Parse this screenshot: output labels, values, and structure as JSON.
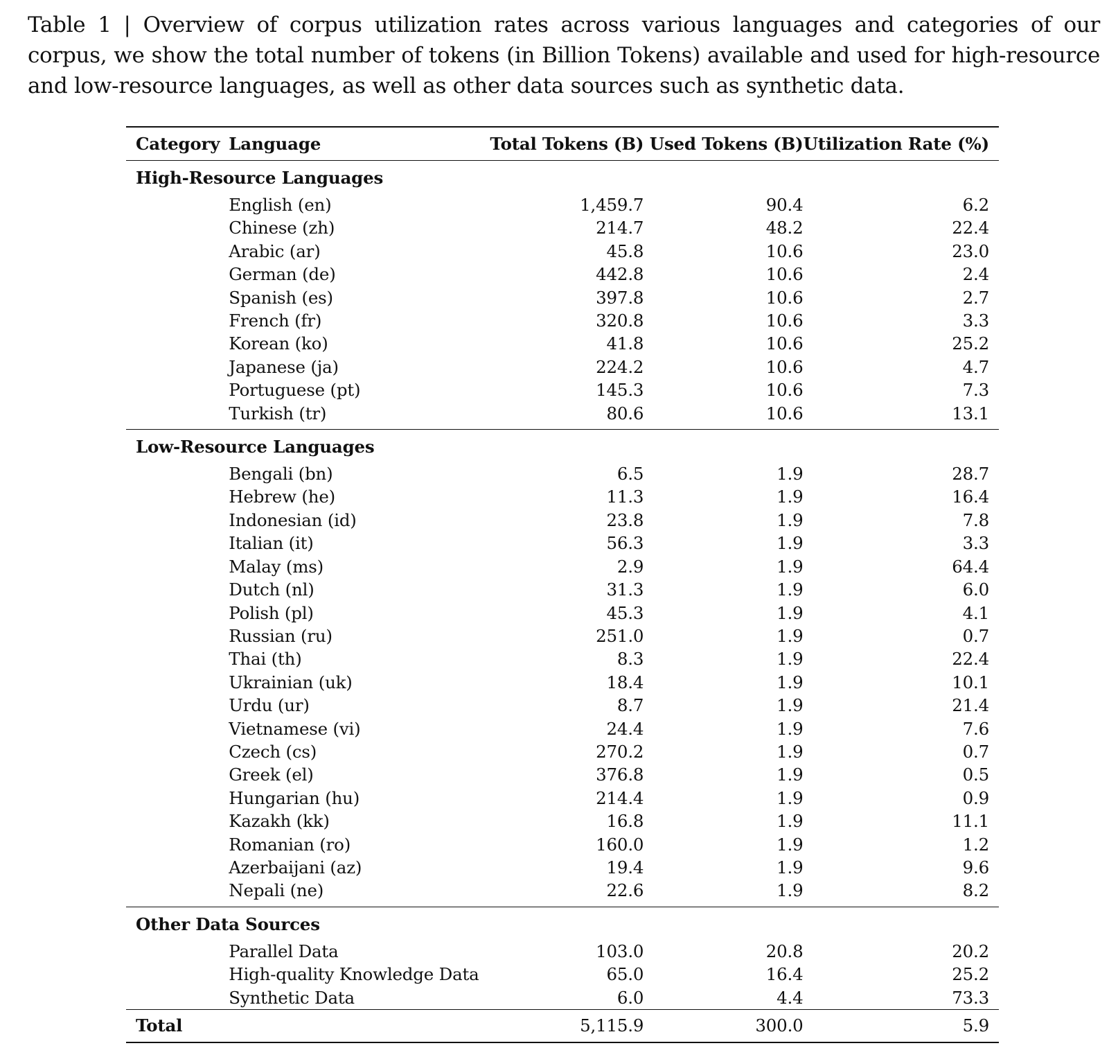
{
  "caption": "Table 1 | Overview of corpus utilization rates across various languages and categories of our corpus, we show the total number of tokens (in Billion Tokens) available and used for high-resource and low-resource languages, as well as other data sources such as synthetic data.",
  "headers": {
    "category": "Category",
    "language": "Language",
    "total": "Total Tokens (B)",
    "used": "Used Tokens (B)",
    "rate": "Utilization Rate (%)"
  },
  "sections": [
    {
      "title": "High-Resource Languages",
      "rows": [
        {
          "name": "English (en)",
          "total": "1,459.7",
          "used": "90.4",
          "rate": "6.2"
        },
        {
          "name": "Chinese (zh)",
          "total": "214.7",
          "used": "48.2",
          "rate": "22.4"
        },
        {
          "name": "Arabic (ar)",
          "total": "45.8",
          "used": "10.6",
          "rate": "23.0"
        },
        {
          "name": "German (de)",
          "total": "442.8",
          "used": "10.6",
          "rate": "2.4"
        },
        {
          "name": "Spanish (es)",
          "total": "397.8",
          "used": "10.6",
          "rate": "2.7"
        },
        {
          "name": "French (fr)",
          "total": "320.8",
          "used": "10.6",
          "rate": "3.3"
        },
        {
          "name": "Korean (ko)",
          "total": "41.8",
          "used": "10.6",
          "rate": "25.2"
        },
        {
          "name": "Japanese (ja)",
          "total": "224.2",
          "used": "10.6",
          "rate": "4.7"
        },
        {
          "name": "Portuguese (pt)",
          "total": "145.3",
          "used": "10.6",
          "rate": "7.3"
        },
        {
          "name": "Turkish (tr)",
          "total": "80.6",
          "used": "10.6",
          "rate": "13.1"
        }
      ]
    },
    {
      "title": "Low-Resource Languages",
      "rows": [
        {
          "name": "Bengali (bn)",
          "total": "6.5",
          "used": "1.9",
          "rate": "28.7"
        },
        {
          "name": "Hebrew (he)",
          "total": "11.3",
          "used": "1.9",
          "rate": "16.4"
        },
        {
          "name": "Indonesian (id)",
          "total": "23.8",
          "used": "1.9",
          "rate": "7.8"
        },
        {
          "name": "Italian (it)",
          "total": "56.3",
          "used": "1.9",
          "rate": "3.3"
        },
        {
          "name": "Malay (ms)",
          "total": "2.9",
          "used": "1.9",
          "rate": "64.4"
        },
        {
          "name": "Dutch (nl)",
          "total": "31.3",
          "used": "1.9",
          "rate": "6.0"
        },
        {
          "name": "Polish (pl)",
          "total": "45.3",
          "used": "1.9",
          "rate": "4.1"
        },
        {
          "name": "Russian (ru)",
          "total": "251.0",
          "used": "1.9",
          "rate": "0.7"
        },
        {
          "name": "Thai (th)",
          "total": "8.3",
          "used": "1.9",
          "rate": "22.4"
        },
        {
          "name": "Ukrainian (uk)",
          "total": "18.4",
          "used": "1.9",
          "rate": "10.1"
        },
        {
          "name": "Urdu (ur)",
          "total": "8.7",
          "used": "1.9",
          "rate": "21.4"
        },
        {
          "name": "Vietnamese (vi)",
          "total": "24.4",
          "used": "1.9",
          "rate": "7.6"
        },
        {
          "name": "Czech (cs)",
          "total": "270.2",
          "used": "1.9",
          "rate": "0.7"
        },
        {
          "name": "Greek (el)",
          "total": "376.8",
          "used": "1.9",
          "rate": "0.5"
        },
        {
          "name": "Hungarian (hu)",
          "total": "214.4",
          "used": "1.9",
          "rate": "0.9"
        },
        {
          "name": "Kazakh (kk)",
          "total": "16.8",
          "used": "1.9",
          "rate": "11.1"
        },
        {
          "name": "Romanian (ro)",
          "total": "160.0",
          "used": "1.9",
          "rate": "1.2"
        },
        {
          "name": "Azerbaijani (az)",
          "total": "19.4",
          "used": "1.9",
          "rate": "9.6"
        },
        {
          "name": "Nepali (ne)",
          "total": "22.6",
          "used": "1.9",
          "rate": "8.2"
        }
      ]
    },
    {
      "title": "Other Data Sources",
      "rows": [
        {
          "name": "Parallel Data",
          "total": "103.0",
          "used": "20.8",
          "rate": "20.2"
        },
        {
          "name": "High-quality Knowledge Data",
          "total": "65.0",
          "used": "16.4",
          "rate": "25.2"
        },
        {
          "name": "Synthetic Data",
          "total": "6.0",
          "used": "4.4",
          "rate": "73.3"
        }
      ]
    }
  ],
  "total": {
    "label": "Total",
    "total": "5,115.9",
    "used": "300.0",
    "rate": "5.9"
  }
}
